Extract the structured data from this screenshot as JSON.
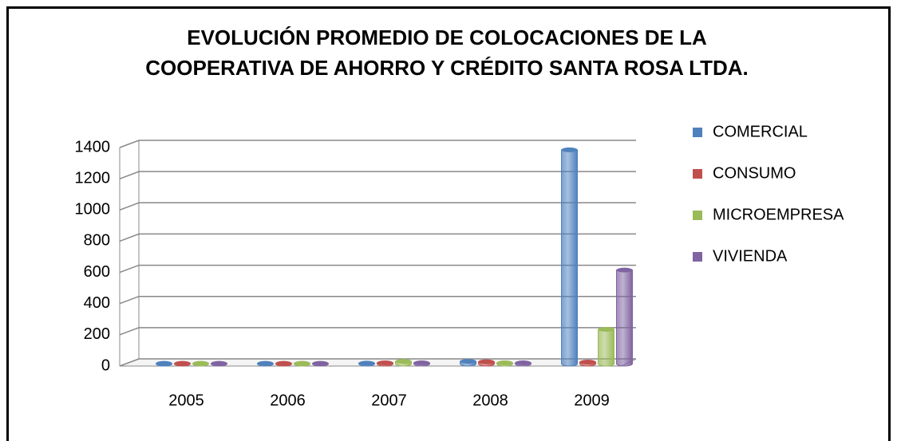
{
  "chart_data": {
    "type": "bar3d",
    "title": "EVOLUCIÓN PROMEDIO DE COLOCACIONES DE LA COOPERATIVA DE AHORRO Y CRÉDITO SANTA ROSA LTDA.",
    "categories": [
      "2005",
      "2006",
      "2007",
      "2008",
      "2009"
    ],
    "series": [
      {
        "name": "COMERCIAL",
        "color": "#4f81bd",
        "values": [
          2,
          2,
          3,
          15,
          1370
        ]
      },
      {
        "name": "CONSUMO",
        "color": "#c0504d",
        "values": [
          2,
          2,
          5,
          12,
          10
        ]
      },
      {
        "name": "MICROEMPRESA",
        "color": "#9bbb59",
        "values": [
          2,
          2,
          15,
          5,
          220
        ]
      },
      {
        "name": "VIVIENDA",
        "color": "#8064a2",
        "values": [
          2,
          2,
          5,
          5,
          600
        ]
      }
    ],
    "ylim": [
      0,
      1400
    ],
    "yticks": [
      0,
      200,
      400,
      600,
      800,
      1000,
      1200,
      1400
    ],
    "grid": true,
    "legend": "right"
  }
}
